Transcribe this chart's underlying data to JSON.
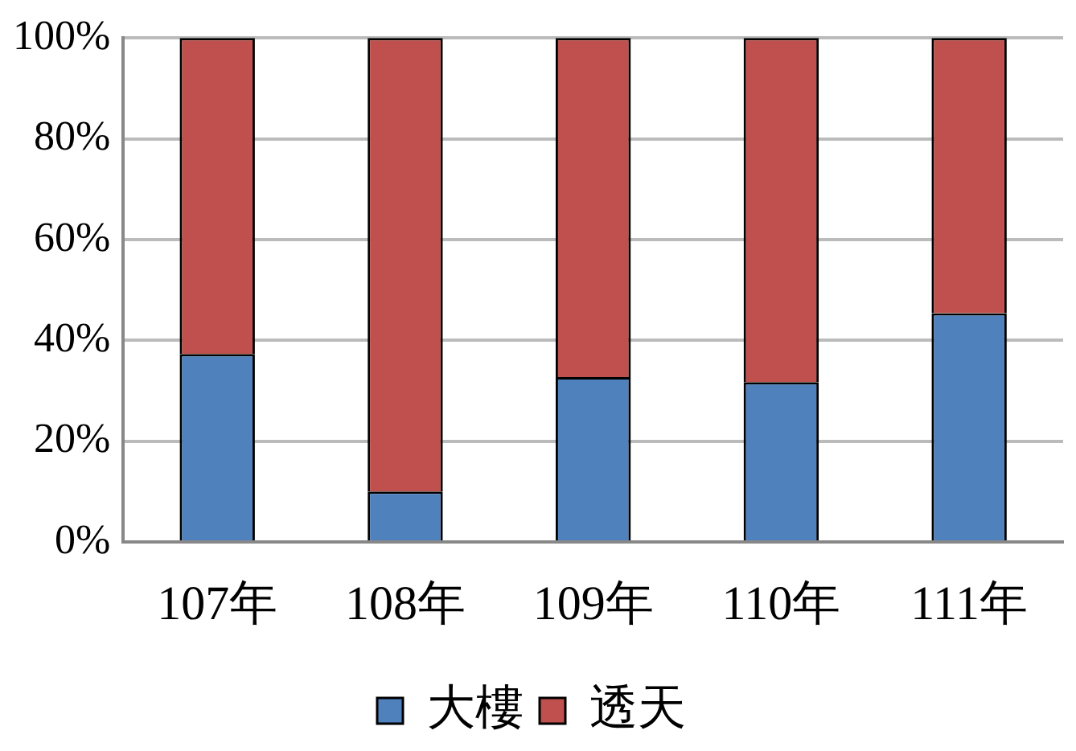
{
  "chart_data": {
    "type": "bar",
    "stacked": true,
    "categories": [
      "107年",
      "108年",
      "109年",
      "110年",
      "111年"
    ],
    "series": [
      {
        "name": "大樓",
        "color": "#4f81bd",
        "values": [
          37.3,
          10,
          32.7,
          31.7,
          45.4
        ]
      },
      {
        "name": "透天",
        "color": "#c0504d",
        "values": [
          62.7,
          90,
          67.3,
          68.3,
          54.6
        ]
      }
    ],
    "ylim": [
      0,
      100
    ],
    "yticks": [
      {
        "value": 0,
        "label": "0%"
      },
      {
        "value": 20,
        "label": "20%"
      },
      {
        "value": 40,
        "label": "40%"
      },
      {
        "value": 60,
        "label": "60%"
      },
      {
        "value": 80,
        "label": "80%"
      },
      {
        "value": 100,
        "label": "100%"
      }
    ],
    "grid": "y",
    "legend": "bottom"
  }
}
